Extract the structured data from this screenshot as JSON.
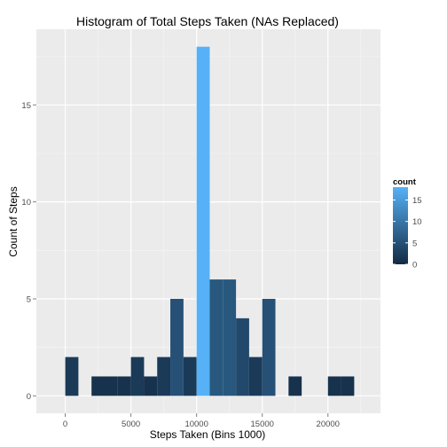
{
  "chart_data": {
    "type": "bar",
    "title": "Histogram of Total Steps Taken (NAs Replaced)",
    "xlabel": "Steps Taken (Bins 1000)",
    "ylabel": "Count of Steps",
    "xlim": [
      -2200,
      24000
    ],
    "ylim": [
      -0.9,
      18.9
    ],
    "x_ticks": [
      0,
      5000,
      10000,
      15000,
      20000
    ],
    "x_tick_labels": [
      "0",
      "5000",
      "10000",
      "15000",
      "20000"
    ],
    "y_ticks": [
      0,
      5,
      10,
      15
    ],
    "y_tick_labels": [
      "0",
      "5",
      "10",
      "15"
    ],
    "bin_width": 1000,
    "bins": [
      {
        "start": 0,
        "end": 1000,
        "count": 2
      },
      {
        "start": 2000,
        "end": 3000,
        "count": 1
      },
      {
        "start": 3000,
        "end": 4000,
        "count": 1
      },
      {
        "start": 4000,
        "end": 5000,
        "count": 1
      },
      {
        "start": 5000,
        "end": 6000,
        "count": 2
      },
      {
        "start": 6000,
        "end": 7000,
        "count": 1
      },
      {
        "start": 7000,
        "end": 8000,
        "count": 2
      },
      {
        "start": 8000,
        "end": 9000,
        "count": 5
      },
      {
        "start": 9000,
        "end": 10000,
        "count": 2
      },
      {
        "start": 10000,
        "end": 11000,
        "count": 18
      },
      {
        "start": 11000,
        "end": 12000,
        "count": 6
      },
      {
        "start": 12000,
        "end": 13000,
        "count": 6
      },
      {
        "start": 13000,
        "end": 14000,
        "count": 4
      },
      {
        "start": 14000,
        "end": 15000,
        "count": 2
      },
      {
        "start": 15000,
        "end": 16000,
        "count": 5
      },
      {
        "start": 17000,
        "end": 18000,
        "count": 1
      },
      {
        "start": 20000,
        "end": 21000,
        "count": 1
      },
      {
        "start": 21000,
        "end": 22000,
        "count": 1
      }
    ],
    "grid": true,
    "legend": {
      "title": "count",
      "position": "right",
      "labels": [
        "15",
        "10",
        "5",
        "0"
      ],
      "values": [
        15,
        10,
        5,
        0
      ],
      "range": [
        0,
        18
      ],
      "low_color": "#132B43",
      "high_color": "#56B1F7"
    },
    "panel_color": "#ebebeb",
    "grid_color": "#ffffff"
  }
}
